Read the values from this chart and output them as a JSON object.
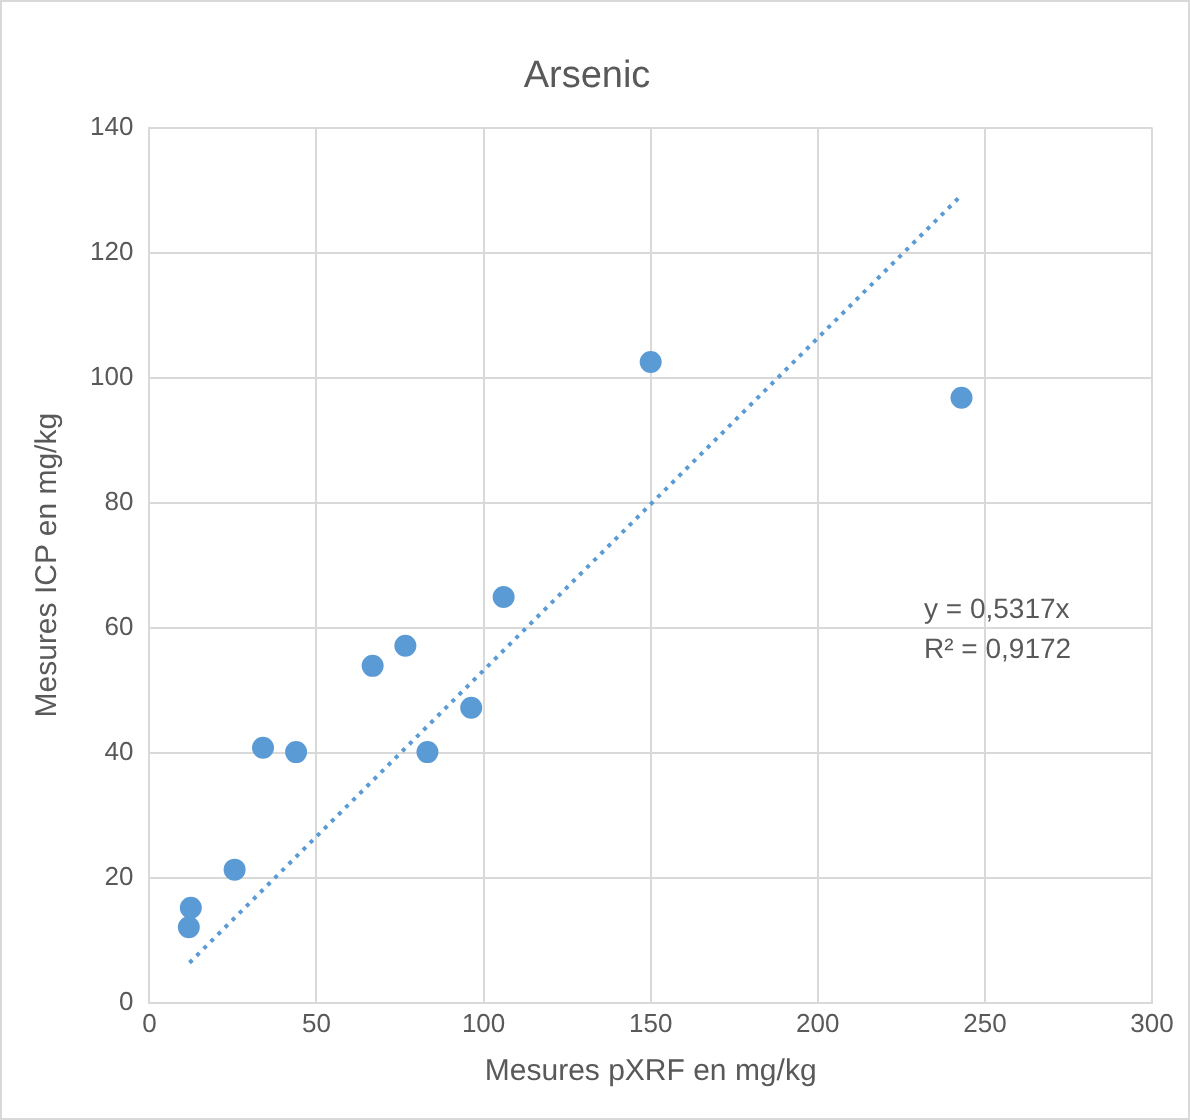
{
  "chart_data": {
    "type": "scatter",
    "title": "Arsenic",
    "xlabel": "Mesures pXRF en mg/kg",
    "ylabel": "Mesures ICP en mg/kg",
    "xlim": [
      0,
      300
    ],
    "xticks": [
      0,
      50,
      100,
      150,
      200,
      250,
      300
    ],
    "ylim": [
      0,
      140
    ],
    "yticks": [
      0,
      20,
      40,
      60,
      80,
      100,
      120,
      140
    ],
    "grid": true,
    "legend": false,
    "marker": "circle",
    "annotations": [
      "y = 0,5317x",
      "R² = 0,9172"
    ],
    "series": [
      {
        "type": "scatter",
        "color": "#5b9bd5",
        "x": [
          12.4,
          11.8,
          25.5,
          34,
          43.9,
          66.8,
          76.6,
          83.2,
          96.3,
          106,
          150,
          243
        ],
        "values": [
          15.2,
          12.1,
          21.3,
          40.8,
          40.1,
          53.9,
          57.1,
          40.1,
          47.2,
          64.9,
          102.5,
          96.8
        ]
      },
      {
        "type": "line",
        "color": "#5b9bd5",
        "line_style": "dotted",
        "marker": "none",
        "x": [
          12,
          243
        ],
        "values": [
          6.4,
          129.2
        ]
      }
    ]
  }
}
